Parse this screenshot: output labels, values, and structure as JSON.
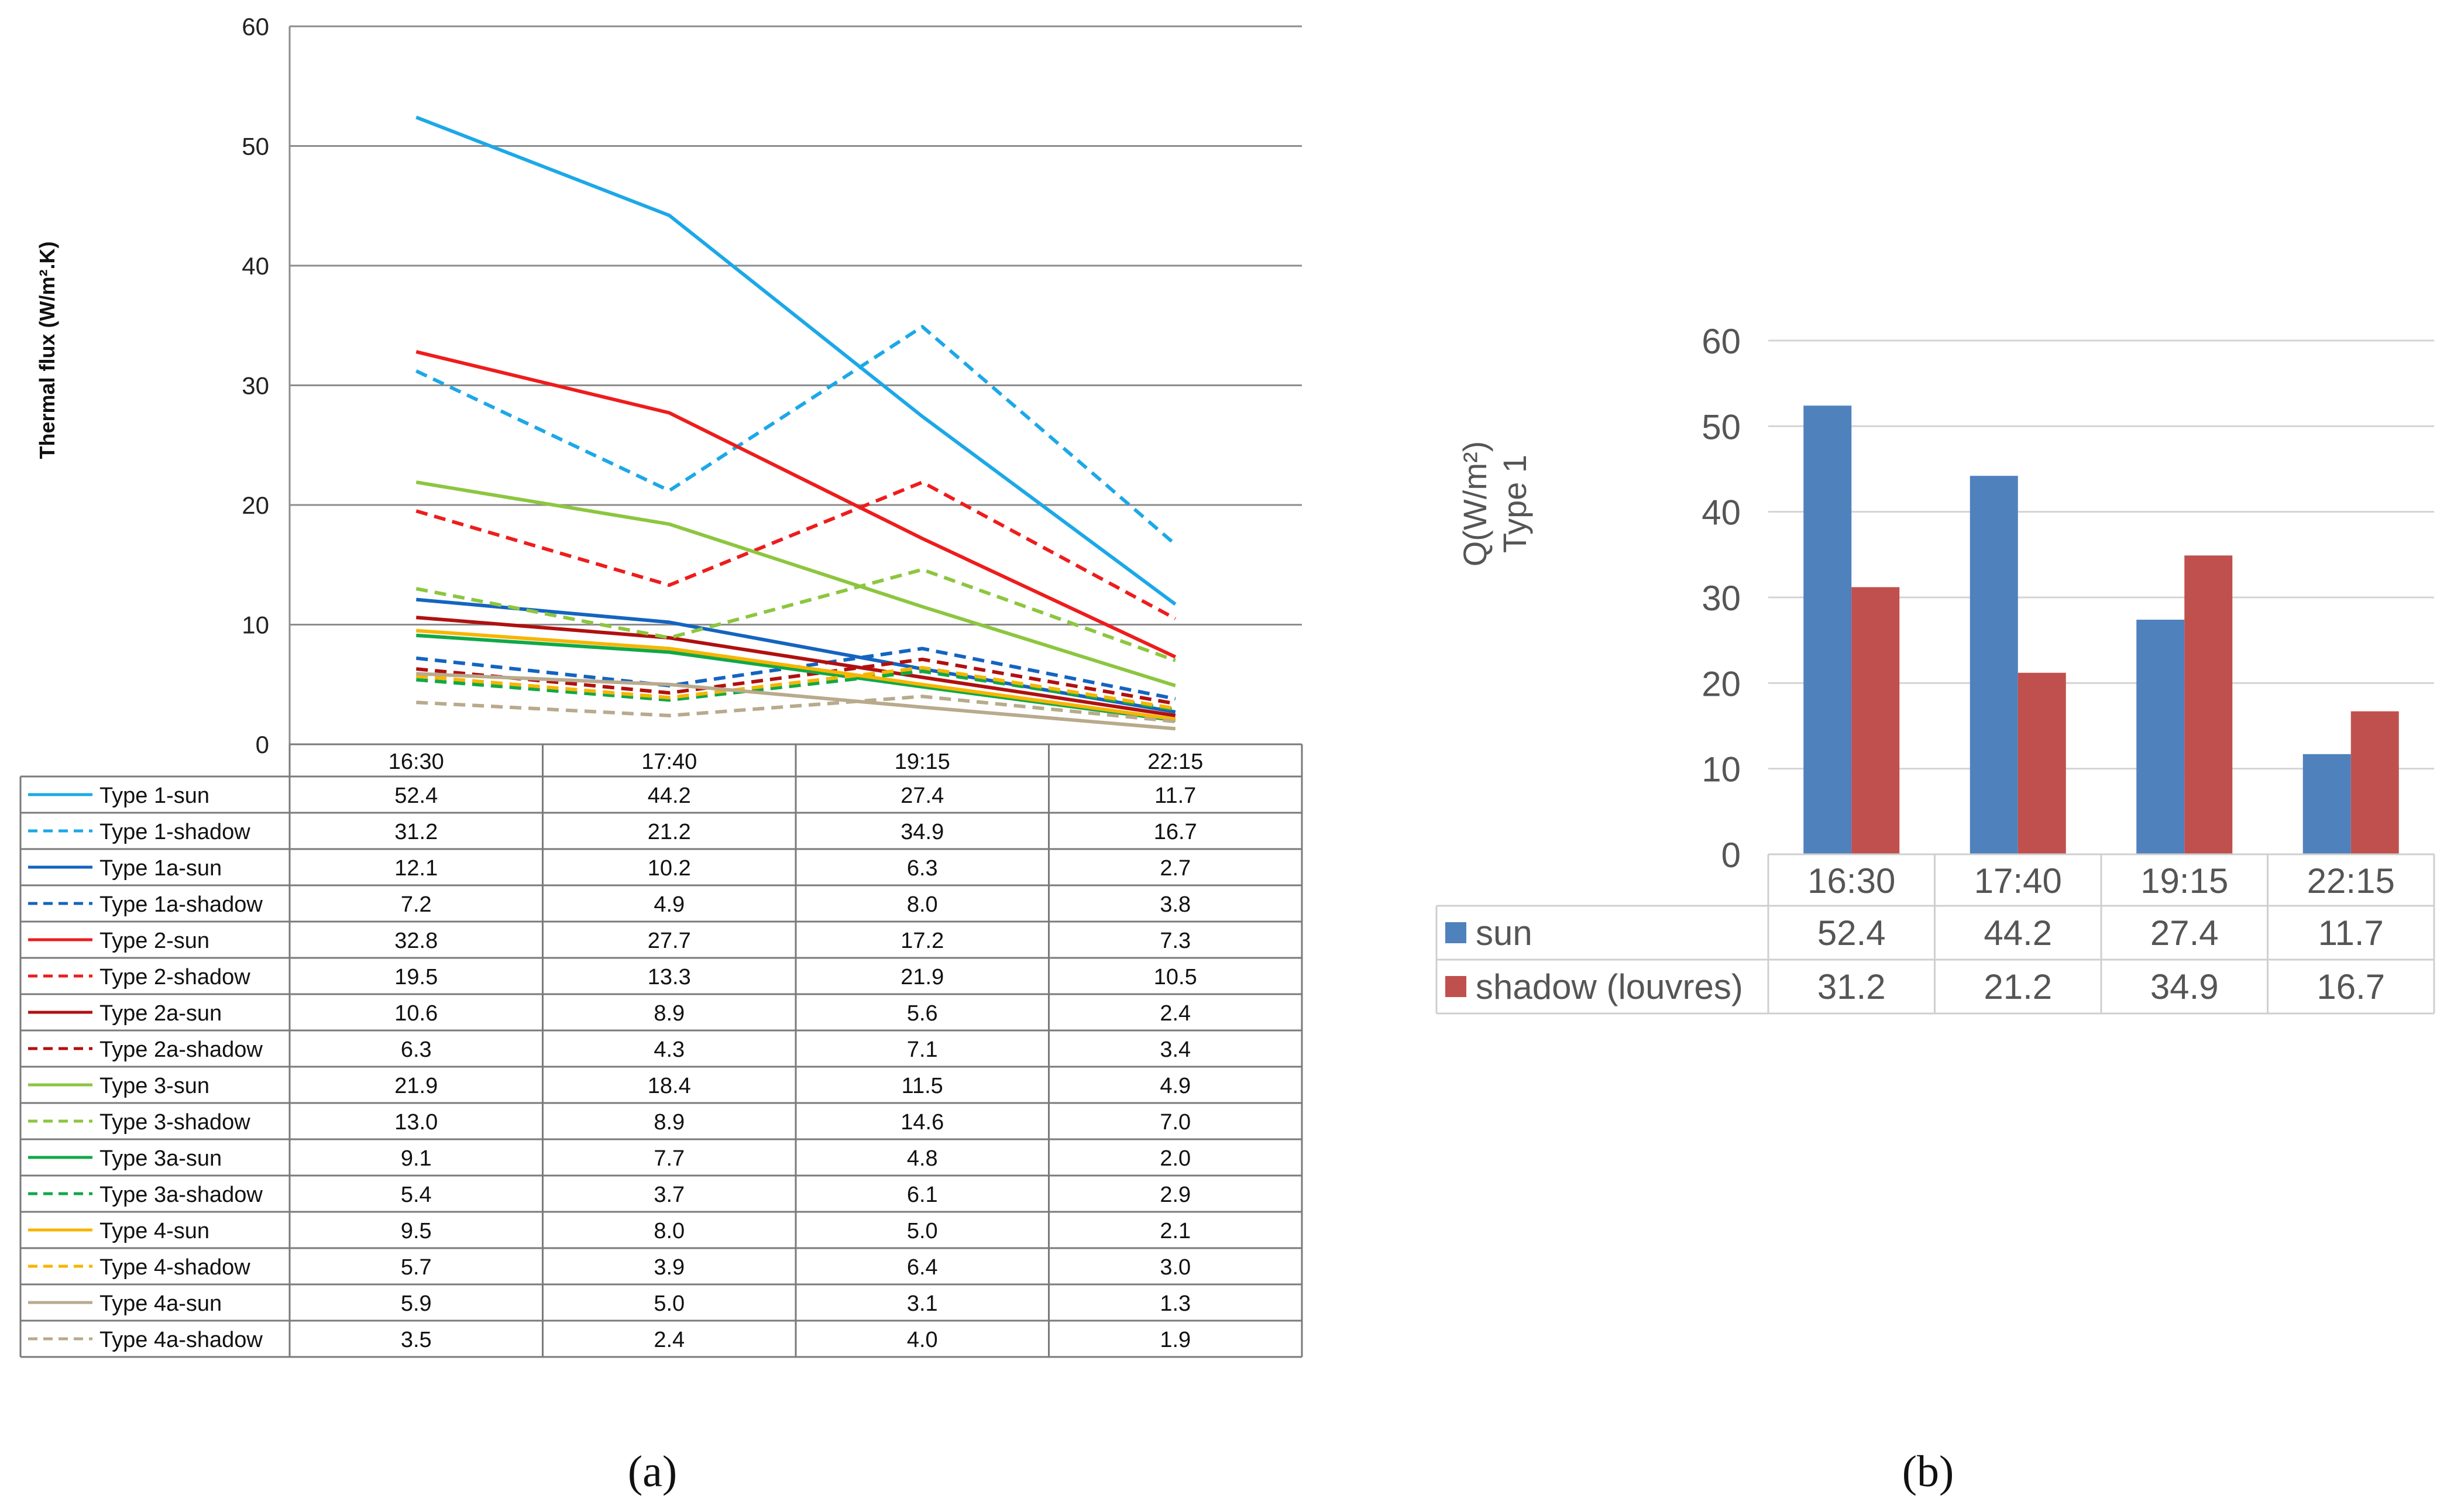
{
  "panel_labels": {
    "a": "(a)",
    "b": "(b)"
  },
  "chart_data": [
    {
      "id": "a",
      "type": "line",
      "categories": [
        "16:30",
        "17:40",
        "19:15",
        "22:15"
      ],
      "ylabel": "Thermal flux (W/m².K)",
      "xlabel": "",
      "ylim": [
        0,
        60
      ],
      "yticks": [
        "0",
        "10",
        "20",
        "30",
        "40",
        "50",
        "60"
      ],
      "grid": true,
      "legend": "data-table",
      "series": [
        {
          "name": "Type 1-sun",
          "color": "#1CA8E8",
          "dash": false,
          "values": [
            52.4,
            44.2,
            27.4,
            11.7
          ],
          "labels": [
            "52.4",
            "44.2",
            "27.4",
            "11.7"
          ]
        },
        {
          "name": "Type 1-shadow",
          "color": "#1CA8E8",
          "dash": true,
          "values": [
            31.2,
            21.2,
            34.9,
            16.7
          ],
          "labels": [
            "31.2",
            "21.2",
            "34.9",
            "16.7"
          ]
        },
        {
          "name": "Type 1a-sun",
          "color": "#1464C0",
          "dash": false,
          "values": [
            12.1,
            10.2,
            6.3,
            2.7
          ],
          "labels": [
            "12.1",
            "10.2",
            "6.3",
            "2.7"
          ]
        },
        {
          "name": "Type 1a-shadow",
          "color": "#1464C0",
          "dash": true,
          "values": [
            7.2,
            4.9,
            8.0,
            3.8
          ],
          "labels": [
            "7.2",
            "4.9",
            "8.0",
            "3.8"
          ]
        },
        {
          "name": "Type 2-sun",
          "color": "#EE1C1C",
          "dash": false,
          "values": [
            32.8,
            27.7,
            17.2,
            7.3
          ],
          "labels": [
            "32.8",
            "27.7",
            "17.2",
            "7.3"
          ]
        },
        {
          "name": "Type 2-shadow",
          "color": "#EE1C1C",
          "dash": true,
          "values": [
            19.5,
            13.3,
            21.9,
            10.5
          ],
          "labels": [
            "19.5",
            "13.3",
            "21.9",
            "10.5"
          ]
        },
        {
          "name": "Type 2a-sun",
          "color": "#B01010",
          "dash": false,
          "values": [
            10.6,
            8.9,
            5.6,
            2.4
          ],
          "labels": [
            "10.6",
            "8.9",
            "5.6",
            "2.4"
          ]
        },
        {
          "name": "Type 2a-shadow",
          "color": "#B01010",
          "dash": true,
          "values": [
            6.3,
            4.3,
            7.1,
            3.4
          ],
          "labels": [
            "6.3",
            "4.3",
            "7.1",
            "3.4"
          ]
        },
        {
          "name": "Type 3-sun",
          "color": "#8CC63F",
          "dash": false,
          "values": [
            21.9,
            18.4,
            11.5,
            4.9
          ],
          "labels": [
            "21.9",
            "18.4",
            "11.5",
            "4.9"
          ]
        },
        {
          "name": "Type 3-shadow",
          "color": "#8CC63F",
          "dash": true,
          "values": [
            13.0,
            8.9,
            14.6,
            7.0
          ],
          "labels": [
            "13.0",
            "8.9",
            "14.6",
            "7.0"
          ]
        },
        {
          "name": "Type 3a-sun",
          "color": "#10A848",
          "dash": false,
          "values": [
            9.1,
            7.7,
            4.8,
            2.0
          ],
          "labels": [
            "9.1",
            "7.7",
            "4.8",
            "2.0"
          ]
        },
        {
          "name": "Type 3a-shadow",
          "color": "#10A848",
          "dash": true,
          "values": [
            5.4,
            3.7,
            6.1,
            2.9
          ],
          "labels": [
            "5.4",
            "3.7",
            "6.1",
            "2.9"
          ]
        },
        {
          "name": "Type 4-sun",
          "color": "#F7B500",
          "dash": false,
          "values": [
            9.5,
            8.0,
            5.0,
            2.1
          ],
          "labels": [
            "9.5",
            "8.0",
            "5.0",
            "2.1"
          ]
        },
        {
          "name": "Type 4-shadow",
          "color": "#F7B500",
          "dash": true,
          "values": [
            5.7,
            3.9,
            6.4,
            3.0
          ],
          "labels": [
            "5.7",
            "3.9",
            "6.4",
            "3.0"
          ]
        },
        {
          "name": "Type 4a-sun",
          "color": "#B8AA8C",
          "dash": false,
          "values": [
            5.9,
            5.0,
            3.1,
            1.3
          ],
          "labels": [
            "5.9",
            "5.0",
            "3.1",
            "1.3"
          ]
        },
        {
          "name": "Type 4a-shadow",
          "color": "#B8AA8C",
          "dash": true,
          "values": [
            3.5,
            2.4,
            4.0,
            1.9
          ],
          "labels": [
            "3.5",
            "2.4",
            "4.0",
            "1.9"
          ]
        }
      ]
    },
    {
      "id": "b",
      "type": "bar",
      "categories": [
        "16:30",
        "17:40",
        "19:15",
        "22:15"
      ],
      "ylabel_line1": "Q(W/m²)",
      "ylabel_line2": "Type 1",
      "xlabel": "",
      "ylim": [
        0,
        60
      ],
      "yticks": [
        "0",
        "10",
        "20",
        "30",
        "40",
        "50",
        "60"
      ],
      "grid": true,
      "legend": "data-table",
      "series": [
        {
          "name": "sun",
          "color": "#4F81BD",
          "values": [
            52.4,
            44.2,
            27.4,
            11.7
          ],
          "labels": [
            "52.4",
            "44.2",
            "27.4",
            "11.7"
          ]
        },
        {
          "name": "shadow (louvres)",
          "color": "#C0504D",
          "values": [
            31.2,
            21.2,
            34.9,
            16.7
          ],
          "labels": [
            "31.2",
            "21.2",
            "34.9",
            "16.7"
          ]
        }
      ]
    }
  ]
}
